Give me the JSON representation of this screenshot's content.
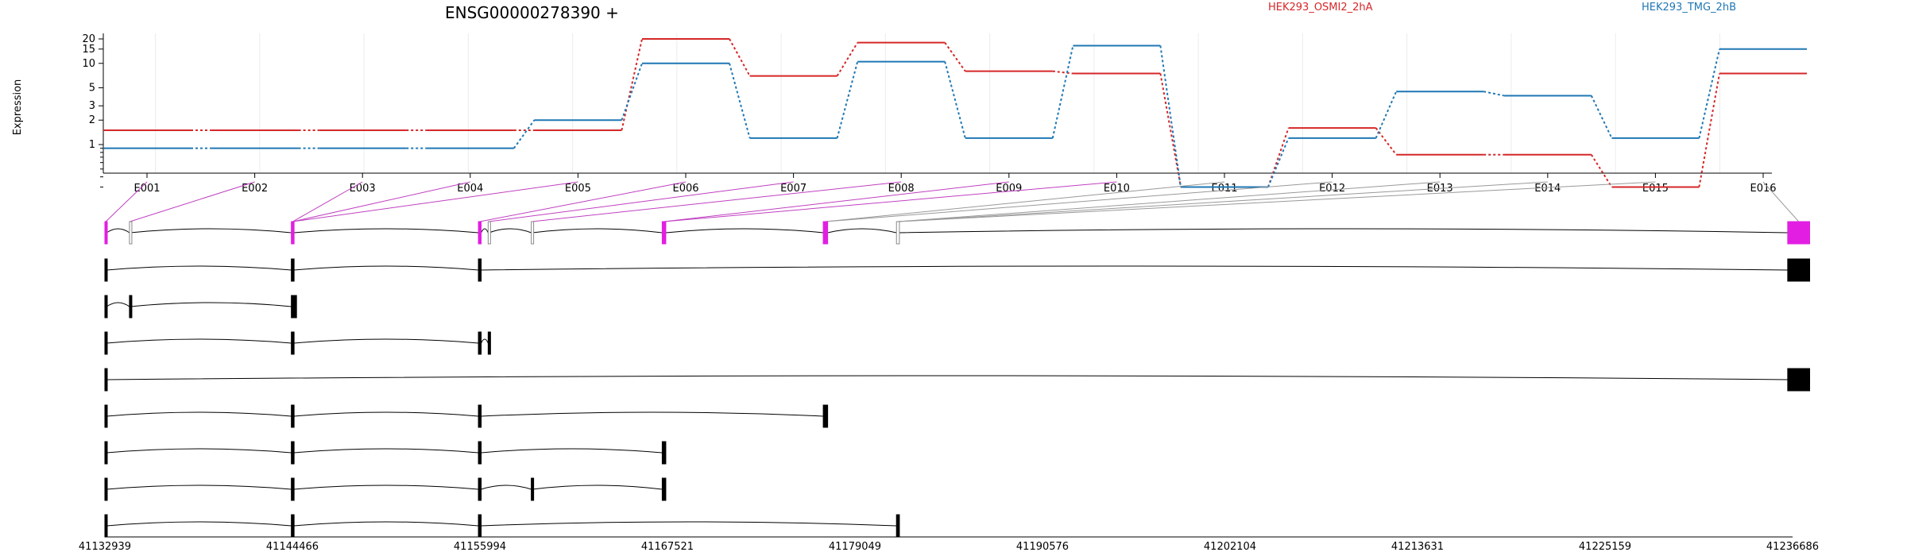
{
  "chart_data": {
    "type": "line",
    "title": "ENSG00000278390 +",
    "ylabel": "Expression",
    "y_scale": "log",
    "y_ticks": [
      "1",
      "2",
      "3",
      "5",
      "10",
      "15",
      "20"
    ],
    "grid": "vertical, light gray",
    "legend_position": "top-right",
    "categories": [
      "E001",
      "E002",
      "E003",
      "E004",
      "E005",
      "E006",
      "E007",
      "E008",
      "E009",
      "E010",
      "E011",
      "E012",
      "E013",
      "E014",
      "E015",
      "E016"
    ],
    "series": [
      {
        "name": "HEK293_OSMI2_2hA",
        "color": "#d62728",
        "values": [
          1.5,
          1.5,
          1.5,
          1.5,
          1.5,
          20,
          7,
          18,
          8,
          7.5,
          0.3,
          1.6,
          0.75,
          0.75,
          0.3,
          7.5
        ]
      },
      {
        "name": "HEK293_TMG_2hB",
        "color": "#1f77b4",
        "values": [
          0.9,
          0.9,
          0.9,
          0.9,
          2.0,
          10,
          1.2,
          10.5,
          1.2,
          16.5,
          0.3,
          1.2,
          4.5,
          4.0,
          1.2,
          15
        ]
      }
    ],
    "gene_model": {
      "genomic_ticks": [
        "41132939",
        "41144466",
        "41155994",
        "41167521",
        "41179049",
        "41190576",
        "41202104",
        "41213631",
        "41225159",
        "41236686"
      ],
      "exon_color": "#e21ee2",
      "transcript_count": 8
    }
  }
}
